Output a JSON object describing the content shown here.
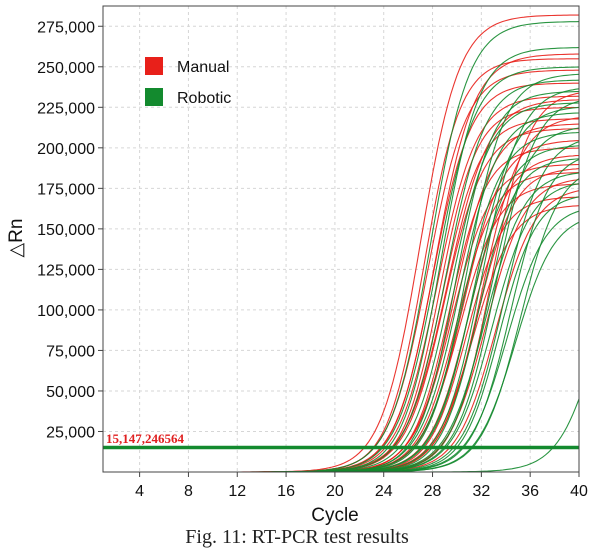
{
  "caption": "Fig. 11: RT-PCR test results",
  "chart_data": {
    "type": "line",
    "title": "",
    "xlabel": "Cycle",
    "ylabel": "△Rn",
    "xlim": [
      1,
      40
    ],
    "ylim": [
      0,
      287500
    ],
    "x_ticks": [
      4,
      8,
      12,
      16,
      20,
      24,
      28,
      32,
      36,
      40
    ],
    "y_ticks": [
      25000,
      50000,
      75000,
      100000,
      125000,
      150000,
      175000,
      200000,
      225000,
      250000,
      275000
    ],
    "y_tick_labels": [
      "25,000",
      "50,000",
      "75,000",
      "100,000",
      "125,000",
      "150,000",
      "175,000",
      "200,000",
      "225,000",
      "250,000",
      "275,000"
    ],
    "grid": true,
    "legend_position": "top-left",
    "threshold": {
      "value": 15147.246564,
      "label": "15,147,246564",
      "color": "#138a2e",
      "label_color": "#e02020"
    },
    "series": [
      {
        "name": "Manual",
        "color": "#e8201a",
        "curves": [
          {
            "ct": 27.0,
            "plateau": 282000,
            "slope": 1.6
          },
          {
            "ct": 27.3,
            "plateau": 255000,
            "slope": 1.5
          },
          {
            "ct": 27.6,
            "plateau": 248000,
            "slope": 1.6
          },
          {
            "ct": 28.0,
            "plateau": 240000,
            "slope": 1.55
          },
          {
            "ct": 28.2,
            "plateau": 258000,
            "slope": 1.6
          },
          {
            "ct": 28.4,
            "plateau": 232000,
            "slope": 1.6
          },
          {
            "ct": 28.6,
            "plateau": 225000,
            "slope": 1.5
          },
          {
            "ct": 28.8,
            "plateau": 218000,
            "slope": 1.55
          },
          {
            "ct": 29.0,
            "plateau": 212000,
            "slope": 1.6
          },
          {
            "ct": 29.2,
            "plateau": 230000,
            "slope": 1.7
          },
          {
            "ct": 29.4,
            "plateau": 200000,
            "slope": 1.5
          },
          {
            "ct": 29.6,
            "plateau": 190000,
            "slope": 1.6
          },
          {
            "ct": 29.8,
            "plateau": 215000,
            "slope": 1.6
          },
          {
            "ct": 30.0,
            "plateau": 185000,
            "slope": 1.55
          },
          {
            "ct": 30.2,
            "plateau": 178000,
            "slope": 1.6
          },
          {
            "ct": 30.5,
            "plateau": 205000,
            "slope": 1.6
          },
          {
            "ct": 30.8,
            "plateau": 170000,
            "slope": 1.5
          },
          {
            "ct": 31.0,
            "plateau": 196000,
            "slope": 1.6
          },
          {
            "ct": 31.3,
            "plateau": 165000,
            "slope": 1.6
          },
          {
            "ct": 31.6,
            "plateau": 188000,
            "slope": 1.55
          },
          {
            "ct": 32.0,
            "plateau": 220000,
            "slope": 1.6
          },
          {
            "ct": 32.4,
            "plateau": 182000,
            "slope": 1.6
          },
          {
            "ct": 32.8,
            "plateau": 236000,
            "slope": 1.55
          },
          {
            "ct": 33.2,
            "plateau": 176000,
            "slope": 1.6
          }
        ]
      },
      {
        "name": "Robotic",
        "color": "#138a2e",
        "curves": [
          {
            "ct": 27.8,
            "plateau": 278000,
            "slope": 1.6
          },
          {
            "ct": 28.3,
            "plateau": 250000,
            "slope": 1.6
          },
          {
            "ct": 28.7,
            "plateau": 262000,
            "slope": 1.55
          },
          {
            "ct": 29.1,
            "plateau": 242000,
            "slope": 1.6
          },
          {
            "ct": 29.5,
            "plateau": 228000,
            "slope": 1.6
          },
          {
            "ct": 29.9,
            "plateau": 235000,
            "slope": 1.5
          },
          {
            "ct": 30.2,
            "plateau": 222000,
            "slope": 1.6
          },
          {
            "ct": 30.5,
            "plateau": 210000,
            "slope": 1.6
          },
          {
            "ct": 30.8,
            "plateau": 246000,
            "slope": 1.55
          },
          {
            "ct": 31.1,
            "plateau": 202000,
            "slope": 1.6
          },
          {
            "ct": 31.4,
            "plateau": 226000,
            "slope": 1.6
          },
          {
            "ct": 31.7,
            "plateau": 194000,
            "slope": 1.5
          },
          {
            "ct": 32.0,
            "plateau": 238000,
            "slope": 1.6
          },
          {
            "ct": 32.3,
            "plateau": 186000,
            "slope": 1.6
          },
          {
            "ct": 32.6,
            "plateau": 214000,
            "slope": 1.55
          },
          {
            "ct": 32.9,
            "plateau": 180000,
            "slope": 1.6
          },
          {
            "ct": 33.2,
            "plateau": 232000,
            "slope": 1.6
          },
          {
            "ct": 33.5,
            "plateau": 172000,
            "slope": 1.5
          },
          {
            "ct": 33.8,
            "plateau": 208000,
            "slope": 1.6
          },
          {
            "ct": 34.1,
            "plateau": 165000,
            "slope": 1.6
          },
          {
            "ct": 34.4,
            "plateau": 198000,
            "slope": 1.55
          },
          {
            "ct": 34.8,
            "plateau": 160000,
            "slope": 1.6
          },
          {
            "ct": 35.2,
            "plateau": 190000,
            "slope": 1.6
          },
          {
            "ct": 41.5,
            "plateau": 160000,
            "slope": 1.6
          }
        ]
      }
    ]
  }
}
